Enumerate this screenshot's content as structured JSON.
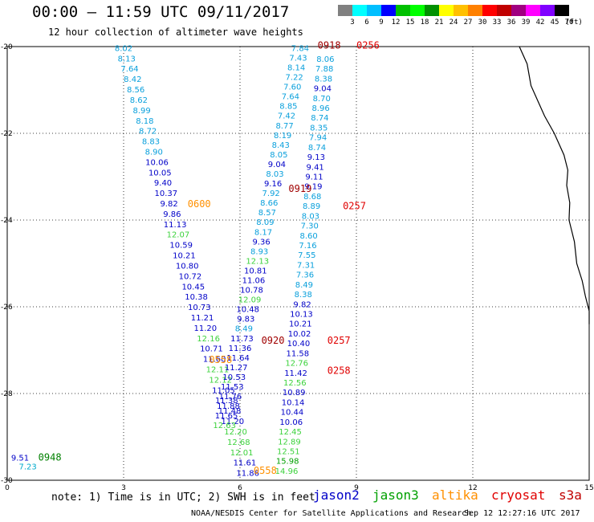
{
  "title": "00:00 – 11:59 UTC 09/11/2017",
  "subtitle": "12 hour collection of altimeter wave heights",
  "legend": {
    "colors": [
      "#808080",
      "#00ffff",
      "#00bfff",
      "#0000ff",
      "#00c000",
      "#00ff00",
      "#009000",
      "#ffff00",
      "#ffc000",
      "#ff8000",
      "#ff0000",
      "#c00000",
      "#a00080",
      "#ff00ff",
      "#8000ff",
      "#000000"
    ],
    "labels": [
      "3",
      "6",
      "9",
      "12",
      "15",
      "18",
      "21",
      "24",
      "27",
      "30",
      "33",
      "36",
      "39",
      "42",
      "45",
      "70",
      "(ft)"
    ]
  },
  "axes": {
    "x_ticks": [
      "0",
      "3",
      "6",
      "9",
      "12",
      "15"
    ],
    "y_ticks": [
      "-20",
      "-22",
      "-24",
      "-26",
      "-28",
      "-30"
    ],
    "lon_range": [
      0,
      15
    ],
    "lat_range": [
      -30,
      -20
    ]
  },
  "note": "note: 1) Time is in UTC; 2) SWH is in feet",
  "satellites": [
    {
      "name": "jason2",
      "color": "#0000c8"
    },
    {
      "name": "jason3",
      "color": "#00a000"
    },
    {
      "name": "altika",
      "color": "#ff9000"
    },
    {
      "name": "cryosat",
      "color": "#e00000"
    },
    {
      "name": "s3a",
      "color": "#c00000"
    }
  ],
  "footer": "NOAA/NESDIS Center for Satellite Applications and Research",
  "footer_time": "Sep 12 12:27:16 UTC 2017",
  "tracks": [
    {
      "name": "track-left",
      "lon0": 3.0,
      "lon1": 6.2,
      "lat0": -20.1,
      "lat1": -29.9,
      "values": [
        "8.02",
        "8.13",
        "7.64",
        "8.42",
        "8.56",
        "8.62",
        "8.99",
        "8.18",
        "8.72",
        "8.83",
        "8.90",
        "10.06",
        "10.05",
        "9.40",
        "10.37",
        "9.82",
        "9.86",
        "11.13",
        "12.07",
        "10.59",
        "10.21",
        "10.80",
        "10.72",
        "10.45",
        "10.38",
        "10.73",
        "11.21",
        "11.20",
        "12.16",
        "10.71",
        "11.60",
        "12.11",
        "12.12",
        "11.05",
        "11.38",
        "11.48",
        "11.20",
        "12.20",
        "12.68",
        "12.01",
        "11.61",
        "11.86"
      ]
    },
    {
      "name": "track-mid",
      "lon0": 7.55,
      "lon1": 5.6,
      "lat0": -20.1,
      "lat1": -28.8,
      "values": [
        "7.84",
        "7.43",
        "8.14",
        "7.22",
        "7.60",
        "7.64",
        "8.85",
        "7.42",
        "8.77",
        "8.19",
        "8.43",
        "8.05",
        "9.04",
        "8.03",
        "9.16",
        "7.92",
        "8.66",
        "8.57",
        "8.09",
        "8.17",
        "9.36",
        "8.93",
        "12.13",
        "10.81",
        "11.06",
        "10.78",
        "12.09",
        "10.48",
        "9.83",
        "8.49",
        "11.73",
        "11.36",
        "11.64",
        "11.27",
        "10.53",
        "11.53",
        "11.76",
        "11.88",
        "11.65",
        "12.63"
      ]
    },
    {
      "name": "track-right",
      "lon0": 8.2,
      "lon1": 7.2,
      "lat0": -20.35,
      "lat1": -29.85,
      "values": [
        "8.06",
        "7.88",
        "8.38",
        "9.04",
        "8.70",
        "8.96",
        "8.74",
        "8.35",
        "7.94",
        "8.74",
        "9.13",
        "9.41",
        "9.11",
        "9.19",
        "8.68",
        "8.89",
        "8.03",
        "7.30",
        "8.60",
        "7.16",
        "7.55",
        "7.31",
        "7.36",
        "8.49",
        "8.38",
        "9.82",
        "10.13",
        "10.21",
        "10.02",
        "10.40",
        "11.58",
        "12.76",
        "11.42",
        "12.56",
        "10.89",
        "10.14",
        "10.44",
        "10.06",
        "12.45",
        "12.89",
        "12.51",
        "15.98",
        "14.96"
      ]
    }
  ],
  "time_labels": [
    {
      "text": "0918",
      "lon": 8.0,
      "lat": -20.05,
      "color": "#a00000"
    },
    {
      "text": "0256",
      "lon": 9.0,
      "lat": -20.05,
      "color": "#e00000"
    },
    {
      "text": "0919",
      "lon": 7.25,
      "lat": -23.35,
      "color": "#a00000"
    },
    {
      "text": "0600",
      "lon": 4.65,
      "lat": -23.7,
      "color": "#ff9000"
    },
    {
      "text": "0257",
      "lon": 8.65,
      "lat": -23.75,
      "color": "#e00000"
    },
    {
      "text": "0920",
      "lon": 6.55,
      "lat": -26.85,
      "color": "#a00000"
    },
    {
      "text": "0257",
      "lon": 8.25,
      "lat": -26.85,
      "color": "#e00000"
    },
    {
      "text": "0558",
      "lon": 5.2,
      "lat": -27.3,
      "color": "#ff9000"
    },
    {
      "text": "0258",
      "lon": 8.25,
      "lat": -27.55,
      "color": "#e00000"
    },
    {
      "text": "0558",
      "lon": 6.35,
      "lat": -29.85,
      "color": "#ff9000"
    },
    {
      "text": "0948",
      "lon": 0.8,
      "lat": -29.55,
      "color": "#008000"
    }
  ],
  "point_values": [
    {
      "text": "9.51",
      "lon": 0.1,
      "lat": -29.55,
      "color": "#0000c8"
    },
    {
      "text": "7.23",
      "lon": 0.3,
      "lat": -29.75,
      "color": "#00aacc"
    }
  ]
}
